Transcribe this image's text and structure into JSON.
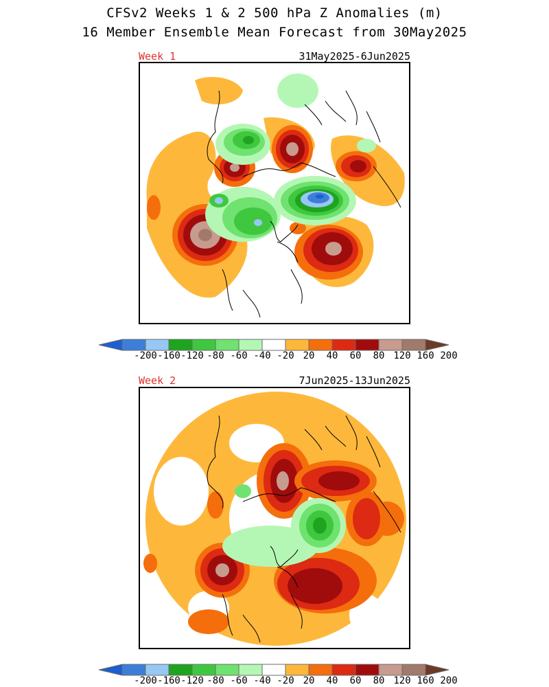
{
  "header": {
    "title_line1": "CFSv2 Weeks 1 & 2 500 hPa Z Anomalies (m)",
    "title_line2": "16 Member Ensemble Mean Forecast from 30May2025"
  },
  "panels": [
    {
      "week_label": "Week 1",
      "date_range": "31May2025-6Jun2025"
    },
    {
      "week_label": "Week 2",
      "date_range": "7Jun2025-13Jun2025"
    }
  ],
  "colorbar": {
    "tick_labels": [
      "-200",
      "-160",
      "-120",
      "-80",
      "-60",
      "-40",
      "-20",
      "20",
      "40",
      "60",
      "80",
      "120",
      "160",
      "200"
    ],
    "colors": [
      "#3d7fd8",
      "#97c8f5",
      "#1fa41f",
      "#3fc83f",
      "#6fe26f",
      "#b4f7b4",
      "#ffffff",
      "#fdb83c",
      "#f56e0c",
      "#dc2a13",
      "#a00c0c",
      "#c89b8f",
      "#a27a6c"
    ],
    "low_arrow_color": "#1c5fd0",
    "high_arrow_color": "#6b3a27",
    "outline_color": "#6b6b6b"
  }
}
